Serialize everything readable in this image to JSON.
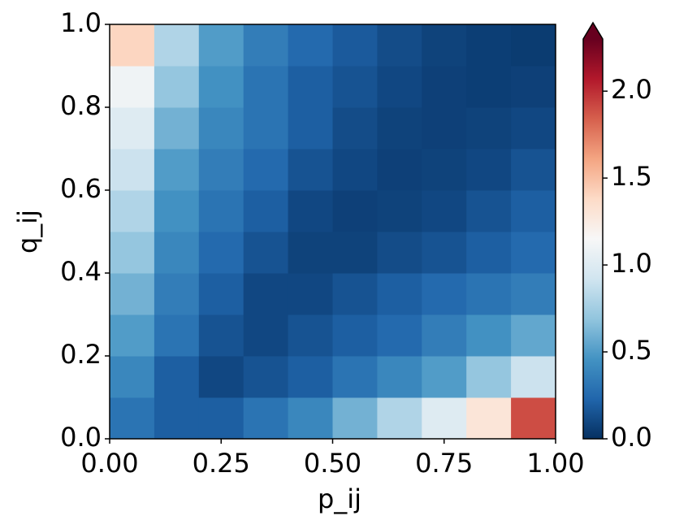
{
  "chart_data": {
    "type": "heatmap",
    "xlabel": "p_ij",
    "ylabel": "q_ij",
    "x": [
      0.05,
      0.15,
      0.25,
      0.35,
      0.45,
      0.55,
      0.65,
      0.75,
      0.85,
      0.95
    ],
    "y": [
      0.05,
      0.15,
      0.25,
      0.35,
      0.45,
      0.55,
      0.65,
      0.75,
      0.85,
      0.95
    ],
    "values": [
      [
        0.3,
        0.2,
        0.2,
        0.3,
        0.4,
        0.6,
        0.8,
        1.0,
        1.3,
        1.9
      ],
      [
        0.4,
        0.2,
        0.1,
        0.15,
        0.2,
        0.3,
        0.4,
        0.5,
        0.7,
        0.9
      ],
      [
        0.5,
        0.3,
        0.15,
        0.1,
        0.15,
        0.2,
        0.25,
        0.35,
        0.45,
        0.55
      ],
      [
        0.6,
        0.35,
        0.2,
        0.1,
        0.1,
        0.15,
        0.2,
        0.25,
        0.3,
        0.35
      ],
      [
        0.7,
        0.4,
        0.25,
        0.15,
        0.08,
        0.08,
        0.12,
        0.15,
        0.2,
        0.25
      ],
      [
        0.8,
        0.45,
        0.3,
        0.2,
        0.1,
        0.07,
        0.08,
        0.1,
        0.15,
        0.2
      ],
      [
        0.9,
        0.5,
        0.35,
        0.25,
        0.15,
        0.1,
        0.07,
        0.08,
        0.1,
        0.15
      ],
      [
        1.0,
        0.6,
        0.4,
        0.3,
        0.2,
        0.12,
        0.08,
        0.07,
        0.08,
        0.1
      ],
      [
        1.1,
        0.7,
        0.45,
        0.3,
        0.2,
        0.15,
        0.1,
        0.07,
        0.06,
        0.07
      ],
      [
        1.4,
        0.8,
        0.5,
        0.35,
        0.25,
        0.18,
        0.12,
        0.08,
        0.06,
        0.05
      ]
    ],
    "xlim": [
      0,
      1
    ],
    "ylim": [
      0,
      1
    ],
    "xticks": [
      {
        "value": 0,
        "label": "0.00"
      },
      {
        "value": 0.25,
        "label": "0.25"
      },
      {
        "value": 0.5,
        "label": "0.50"
      },
      {
        "value": 0.75,
        "label": "0.75"
      },
      {
        "value": 1,
        "label": "1.00"
      }
    ],
    "yticks": [
      {
        "value": 0,
        "label": "0.0"
      },
      {
        "value": 0.2,
        "label": "0.2"
      },
      {
        "value": 0.4,
        "label": "0.4"
      },
      {
        "value": 0.6,
        "label": "0.6"
      },
      {
        "value": 0.8,
        "label": "0.8"
      },
      {
        "value": 1,
        "label": "1.0"
      }
    ],
    "clim": [
      0,
      2.3
    ],
    "cticks": [
      {
        "value": 0,
        "label": "0.0"
      },
      {
        "value": 0.5,
        "label": "0.5"
      },
      {
        "value": 1,
        "label": "1.0"
      },
      {
        "value": 1.5,
        "label": "1.5"
      },
      {
        "value": 2,
        "label": "2.0"
      }
    ],
    "colorbar_extend": "max",
    "colormap": [
      "#053061",
      "#2166ac",
      "#4393c3",
      "#92c5de",
      "#d1e5f0",
      "#f7f7f7",
      "#fddbc7",
      "#f4a582",
      "#d6604d",
      "#b2182b",
      "#67001f"
    ]
  }
}
